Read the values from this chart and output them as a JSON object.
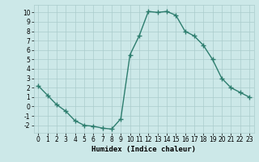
{
  "x": [
    0,
    1,
    2,
    3,
    4,
    5,
    6,
    7,
    8,
    9,
    10,
    11,
    12,
    13,
    14,
    15,
    16,
    17,
    18,
    19,
    20,
    21,
    22,
    23
  ],
  "y": [
    2.2,
    1.2,
    0.2,
    -0.5,
    -1.5,
    -2.0,
    -2.1,
    -2.3,
    -2.4,
    -1.3,
    5.5,
    7.5,
    10.1,
    10.0,
    10.1,
    9.7,
    8.0,
    7.5,
    6.5,
    5.0,
    3.0,
    2.0,
    1.5,
    1.0
  ],
  "line_color": "#2d7d6e",
  "marker": "+",
  "marker_size": 4,
  "background_color": "#cce8e8",
  "grid_color": "#aacccc",
  "xlabel": "Humidex (Indice chaleur)",
  "xlim": [
    -0.5,
    23.5
  ],
  "ylim": [
    -2.8,
    10.8
  ],
  "xticks": [
    0,
    1,
    2,
    3,
    4,
    5,
    6,
    7,
    8,
    9,
    10,
    11,
    12,
    13,
    14,
    15,
    16,
    17,
    18,
    19,
    20,
    21,
    22,
    23
  ],
  "yticks": [
    -2,
    -1,
    0,
    1,
    2,
    3,
    4,
    5,
    6,
    7,
    8,
    9,
    10
  ],
  "tick_fontsize": 5.5,
  "label_fontsize": 6.5,
  "line_width": 1.0
}
